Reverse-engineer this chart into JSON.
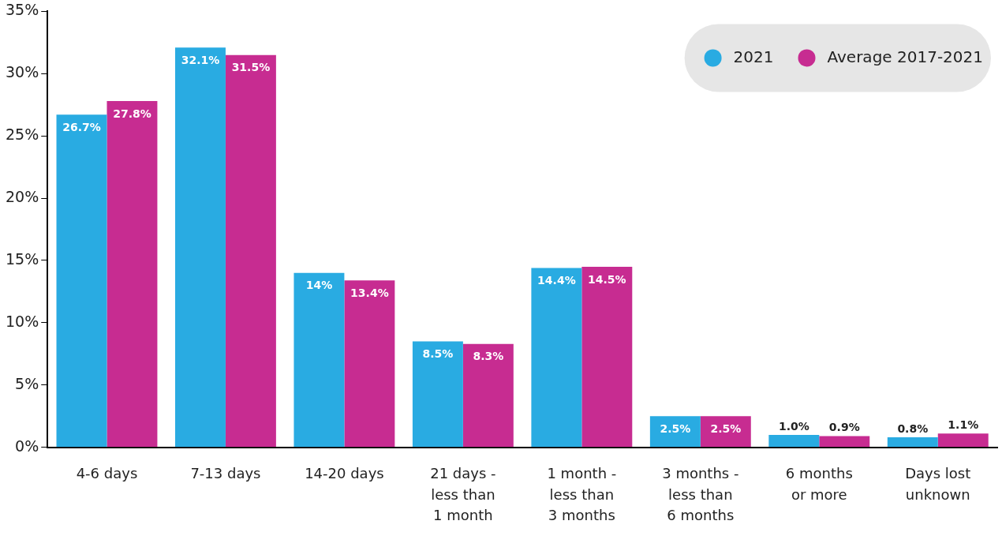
{
  "chart_data": {
    "type": "bar",
    "categories": [
      "4-6 days",
      "7-13 days",
      "14-20 days",
      "21 days - less than 1 month",
      "1 month - less than 3 months",
      "3 months - less than 6 months",
      "6 months or more",
      "Days lost unknown"
    ],
    "series": [
      {
        "name": "2021",
        "color": "#29abe2",
        "values": [
          26.7,
          32.1,
          14,
          8.5,
          14.4,
          2.5,
          1.0,
          0.8
        ],
        "value_labels": [
          "26.7%",
          "32.1%",
          "14%",
          "8.5%",
          "14.4%",
          "2.5%",
          "1.0%",
          "0.8%"
        ]
      },
      {
        "name": "Average 2017-2021",
        "color": "#c72c91",
        "values": [
          27.8,
          31.5,
          13.4,
          8.3,
          14.5,
          2.5,
          0.9,
          1.1
        ],
        "value_labels": [
          "27.8%",
          "31.5%",
          "13.4%",
          "8.3%",
          "14.5%",
          "2.5%",
          "0.9%",
          "1.1%"
        ]
      }
    ],
    "ylim": [
      0,
      35
    ],
    "yticks": [
      {
        "value": 0,
        "label": "0%"
      },
      {
        "value": 5,
        "label": "5%"
      },
      {
        "value": 10,
        "label": "10%"
      },
      {
        "value": 15,
        "label": "15%"
      },
      {
        "value": 20,
        "label": "20%"
      },
      {
        "value": 25,
        "label": "25%"
      },
      {
        "value": 30,
        "label": "30%"
      },
      {
        "value": 35,
        "label": "35%"
      }
    ],
    "grid": false,
    "legend": "top right"
  }
}
